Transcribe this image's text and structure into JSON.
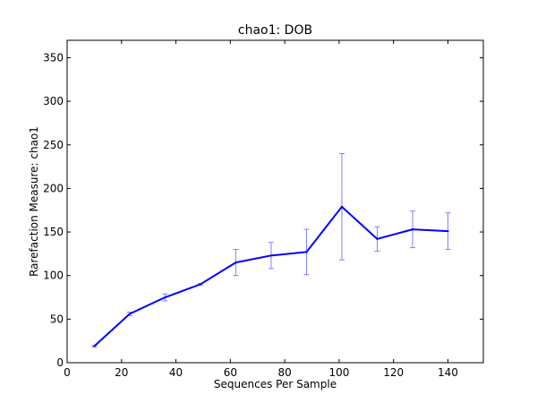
{
  "chart_data": {
    "type": "line",
    "title": "chao1: DOB",
    "xlabel": "Sequences Per Sample",
    "ylabel": "Rarefaction Measure: chao1",
    "xlim": [
      0,
      153
    ],
    "ylim": [
      0,
      370
    ],
    "x_ticks": [
      0,
      20,
      40,
      60,
      80,
      100,
      120,
      140
    ],
    "y_ticks": [
      0,
      50,
      100,
      150,
      200,
      250,
      300,
      350
    ],
    "grid": false,
    "legend": "none",
    "series": [
      {
        "color": "#0000ff",
        "errorbar_color": "#8080ff",
        "x": [
          10,
          23,
          36,
          49,
          62,
          75,
          88,
          101,
          114,
          127,
          140
        ],
        "y": [
          19,
          56,
          75,
          90,
          115,
          123,
          127,
          179,
          142,
          153,
          151
        ],
        "yerr": [
          1,
          2,
          4,
          1,
          15,
          15,
          26,
          61,
          14,
          21,
          21
        ]
      }
    ]
  }
}
